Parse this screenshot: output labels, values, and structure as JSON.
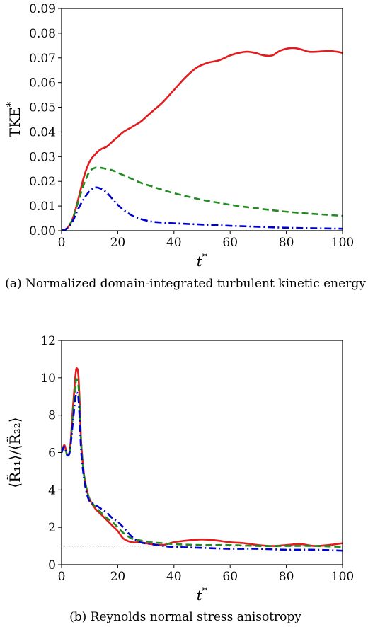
{
  "chart_data": [
    {
      "type": "line",
      "caption": "(a) Normalized domain-integrated turbulent kinetic energy",
      "xlabel": "t*",
      "ylabel": "TKE*",
      "xlim": [
        0,
        100
      ],
      "ylim": [
        0,
        0.09
      ],
      "xticks": [
        "0",
        "20",
        "40",
        "60",
        "80",
        "100"
      ],
      "yticks": [
        "0.00",
        "0.01",
        "0.02",
        "0.03",
        "0.04",
        "0.05",
        "0.06",
        "0.07",
        "0.08",
        "0.09"
      ],
      "grid": false,
      "series": [
        {
          "color": "#e41a1c",
          "style": "solid",
          "x": [
            0,
            2,
            4,
            6,
            8,
            10,
            12,
            14,
            16,
            18,
            20,
            22,
            25,
            28,
            30,
            33,
            36,
            40,
            44,
            48,
            52,
            56,
            60,
            63,
            66,
            69,
            72,
            75,
            78,
            82,
            85,
            88,
            91,
            95,
            98,
            100
          ],
          "y": [
            0,
            0.001,
            0.005,
            0.013,
            0.022,
            0.028,
            0.031,
            0.033,
            0.034,
            0.036,
            0.038,
            0.04,
            0.042,
            0.044,
            0.046,
            0.049,
            0.052,
            0.057,
            0.062,
            0.066,
            0.068,
            0.069,
            0.071,
            0.072,
            0.0725,
            0.072,
            0.071,
            0.071,
            0.073,
            0.074,
            0.0735,
            0.0725,
            0.0725,
            0.0728,
            0.0725,
            0.072
          ]
        },
        {
          "color": "#228b22",
          "style": "dashed",
          "x": [
            0,
            2,
            4,
            6,
            8,
            10,
            12,
            14,
            16,
            18,
            20,
            24,
            28,
            32,
            36,
            40,
            45,
            50,
            55,
            60,
            65,
            70,
            75,
            80,
            85,
            90,
            95,
            100
          ],
          "y": [
            0,
            0.001,
            0.005,
            0.012,
            0.019,
            0.024,
            0.0255,
            0.0255,
            0.025,
            0.0245,
            0.0235,
            0.0215,
            0.0195,
            0.018,
            0.0165,
            0.0152,
            0.0138,
            0.0125,
            0.0115,
            0.0105,
            0.0097,
            0.009,
            0.0083,
            0.0077,
            0.0072,
            0.0068,
            0.0064,
            0.006
          ]
        },
        {
          "color": "#0000cd",
          "style": "dashdot",
          "x": [
            0,
            2,
            4,
            6,
            8,
            10,
            12,
            14,
            16,
            18,
            20,
            22,
            25,
            28,
            32,
            36,
            40,
            50,
            60,
            70,
            80,
            90,
            100
          ],
          "y": [
            0,
            0.001,
            0.004,
            0.009,
            0.013,
            0.016,
            0.0175,
            0.017,
            0.0155,
            0.013,
            0.0105,
            0.0085,
            0.0062,
            0.0048,
            0.0037,
            0.0033,
            0.003,
            0.0025,
            0.002,
            0.0016,
            0.0012,
            0.001,
            0.0008
          ]
        }
      ]
    },
    {
      "type": "line",
      "caption": "(b) Reynolds normal stress anisotropy",
      "xlabel": "t*",
      "ylabel": "⟨R̃₁₁⟩/⟨R̃₂₂⟩",
      "xlim": [
        0,
        100
      ],
      "ylim": [
        0,
        12
      ],
      "xticks": [
        "0",
        "20",
        "40",
        "60",
        "80",
        "100"
      ],
      "yticks": [
        "0",
        "2",
        "4",
        "6",
        "8",
        "10",
        "12"
      ],
      "grid": false,
      "reference_line": {
        "y": 1,
        "style": "dotted",
        "color": "#000000"
      },
      "series": [
        {
          "color": "#e41a1c",
          "style": "solid",
          "x": [
            0,
            1,
            2,
            3,
            4,
            5,
            5.5,
            6,
            6.5,
            7,
            8,
            9,
            10,
            12,
            14,
            16,
            18,
            20,
            22,
            25,
            28,
            32,
            36,
            40,
            45,
            50,
            55,
            60,
            65,
            70,
            75,
            80,
            85,
            90,
            95,
            100
          ],
          "y": [
            6.0,
            6.4,
            5.9,
            6.2,
            8.3,
            10.2,
            10.5,
            10.1,
            8.5,
            6.5,
            4.8,
            4.0,
            3.5,
            3.0,
            2.7,
            2.4,
            2.1,
            1.8,
            1.4,
            1.2,
            1.2,
            1.1,
            1.05,
            1.2,
            1.3,
            1.35,
            1.3,
            1.2,
            1.15,
            1.05,
            1.0,
            1.05,
            1.1,
            1.0,
            1.05,
            1.15
          ]
        },
        {
          "color": "#228b22",
          "style": "dashed",
          "x": [
            0,
            1,
            2,
            3,
            4,
            5,
            5.5,
            6,
            6.5,
            7,
            8,
            9,
            10,
            12,
            14,
            16,
            18,
            20,
            22,
            25,
            28,
            32,
            36,
            40,
            50,
            60,
            70,
            80,
            90,
            100
          ],
          "y": [
            6.0,
            6.3,
            5.9,
            6.1,
            8.0,
            9.7,
            9.9,
            9.6,
            8.2,
            6.4,
            4.8,
            4.0,
            3.5,
            3.1,
            2.8,
            2.5,
            2.3,
            2.0,
            1.7,
            1.4,
            1.3,
            1.2,
            1.15,
            1.1,
            1.05,
            1.05,
            1.0,
            1.0,
            1.0,
            0.95
          ]
        },
        {
          "color": "#0000cd",
          "style": "dashdot",
          "x": [
            0,
            1,
            2,
            3,
            4,
            5,
            5.5,
            6,
            6.5,
            7,
            8,
            9,
            10,
            12,
            14,
            16,
            18,
            20,
            22,
            25,
            28,
            32,
            36,
            40,
            50,
            60,
            70,
            80,
            90,
            100
          ],
          "y": [
            6.0,
            6.3,
            5.85,
            6.1,
            7.6,
            9.0,
            9.2,
            8.9,
            7.6,
            6.0,
            4.6,
            3.8,
            3.4,
            3.2,
            3.0,
            2.8,
            2.5,
            2.3,
            2.0,
            1.5,
            1.2,
            1.1,
            1.0,
            0.95,
            0.9,
            0.85,
            0.85,
            0.8,
            0.8,
            0.75
          ]
        }
      ]
    }
  ]
}
